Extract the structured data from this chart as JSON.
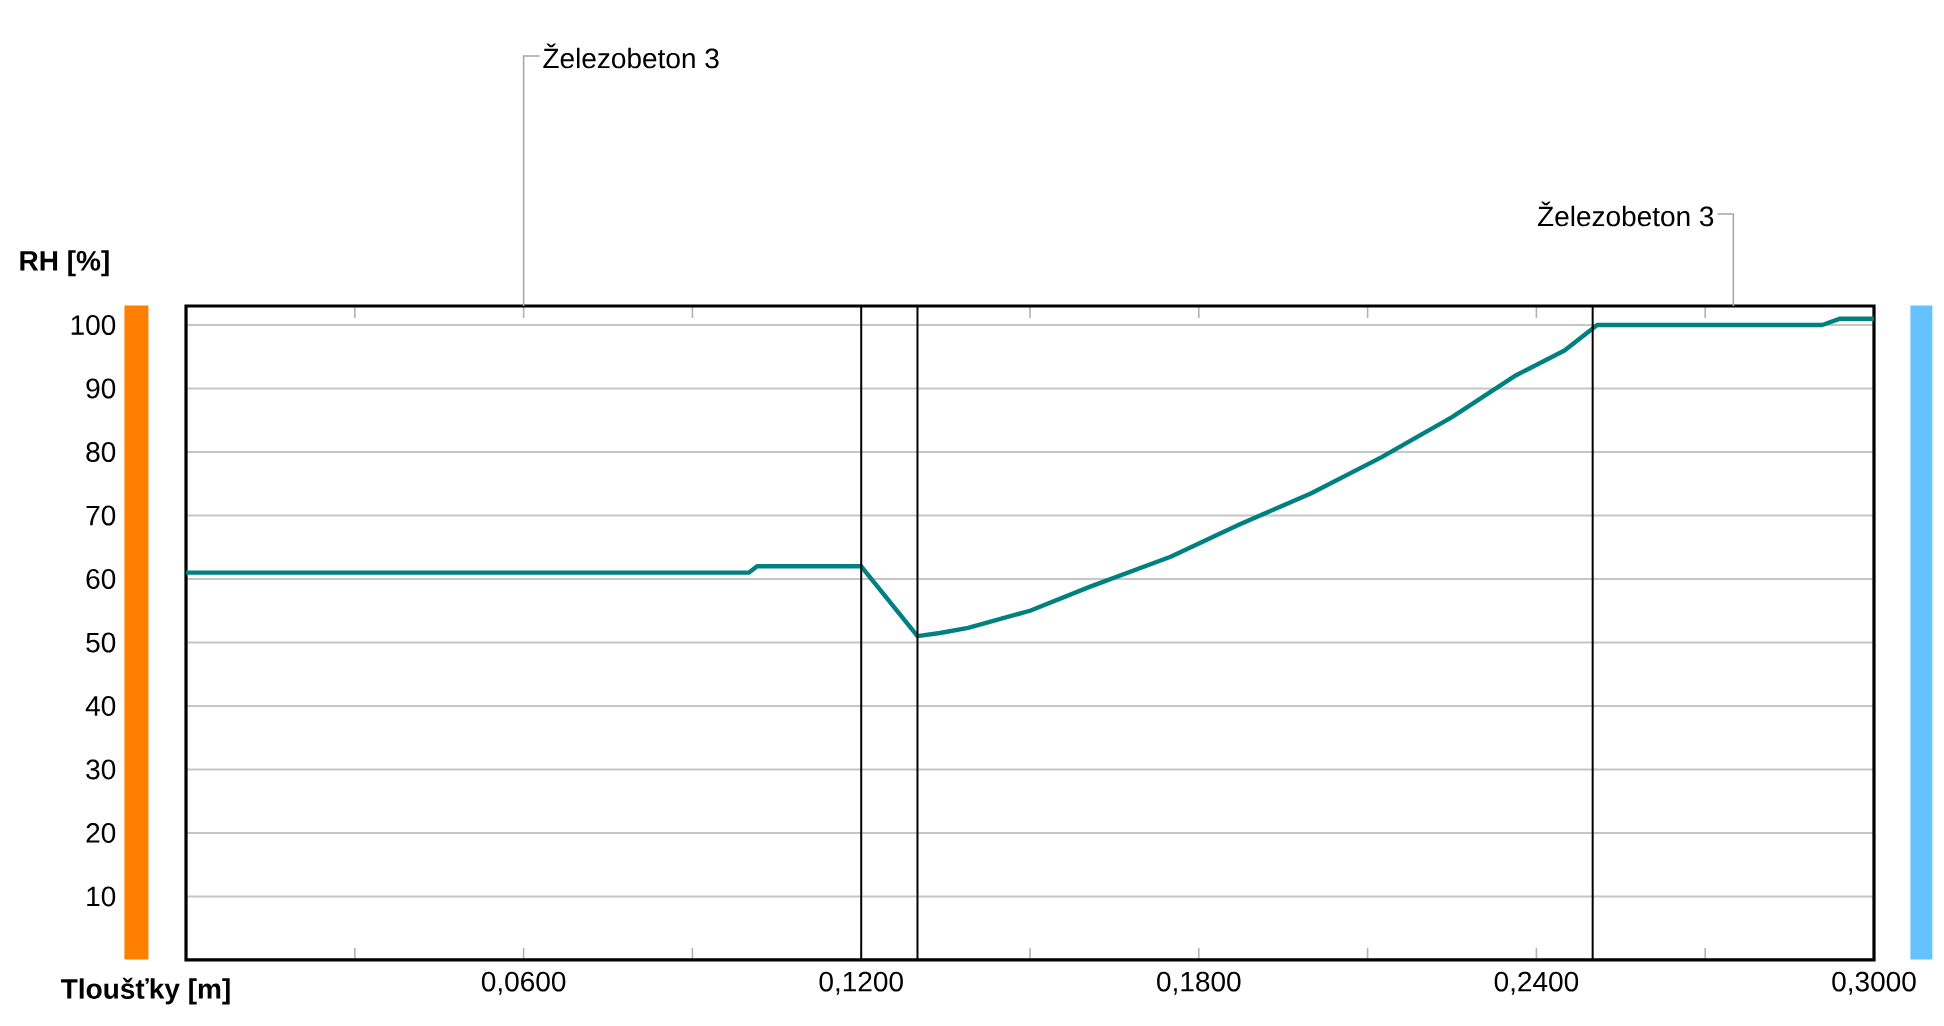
{
  "chart_data": {
    "type": "line",
    "xlabel": "Tloušťky [m]",
    "ylabel": "RH [%]",
    "xlim": [
      0,
      0.3
    ],
    "ylim": [
      0,
      103
    ],
    "xticks": [
      {
        "value": 0.03,
        "label": null
      },
      {
        "value": 0.06,
        "label": "0,0600"
      },
      {
        "value": 0.09,
        "label": null
      },
      {
        "value": 0.12,
        "label": "0,1200"
      },
      {
        "value": 0.15,
        "label": null
      },
      {
        "value": 0.18,
        "label": "0,1800"
      },
      {
        "value": 0.21,
        "label": null
      },
      {
        "value": 0.24,
        "label": "0,2400"
      },
      {
        "value": 0.27,
        "label": null
      },
      {
        "value": 0.3,
        "label": "0,3000"
      }
    ],
    "yticks": [
      10,
      20,
      30,
      40,
      50,
      60,
      70,
      80,
      90,
      100
    ],
    "grid": "y",
    "marker": "none",
    "line_style": "solid",
    "ref_lines": [
      {
        "axis": "x",
        "value": 0.12,
        "color": "#000000"
      },
      {
        "axis": "x",
        "value": 0.13,
        "color": "#000000"
      },
      {
        "axis": "x",
        "value": 0.25,
        "color": "#000000"
      }
    ],
    "annotations": [
      "Železobeton 3",
      "Železobeton 3"
    ],
    "series": [
      {
        "color": "#008080",
        "x": [
          0,
          0.05,
          0.1,
          0.1015,
          0.12,
          0.13,
          0.134,
          0.139,
          0.15,
          0.1607,
          0.175,
          0.1872,
          0.2,
          0.2125,
          0.225,
          0.2364,
          0.245,
          0.2508,
          0.27,
          0.2908,
          0.294,
          0.3
        ],
        "values": [
          61,
          61,
          61,
          62,
          62,
          51,
          51.5,
          52.3,
          55,
          58.8,
          63.5,
          68.6,
          73.5,
          79.2,
          85.5,
          92.1,
          96,
          100,
          100,
          100,
          101,
          101
        ]
      }
    ]
  }
}
